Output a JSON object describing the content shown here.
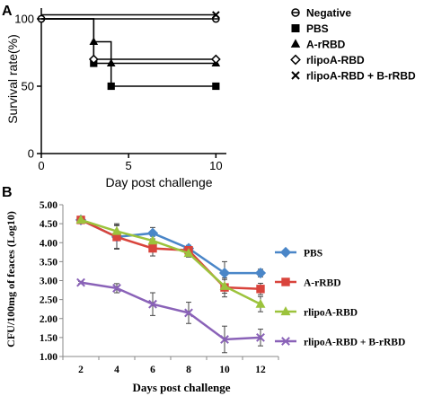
{
  "panels": {
    "a": {
      "label": "A"
    },
    "b": {
      "label": "B"
    }
  },
  "chart_data": [
    {
      "type": "line",
      "subtype": "step",
      "panel": "A",
      "title": "",
      "xlabel": "Day post challenge",
      "ylabel": "Survival rate(%)",
      "xlim": [
        0,
        10.6
      ],
      "ylim": [
        0,
        108
      ],
      "xticks": [
        0,
        5,
        10
      ],
      "yticks": [
        0,
        50,
        100
      ],
      "grid": false,
      "legend_position": "right",
      "series": [
        {
          "name": "Negative",
          "marker": "circle-line",
          "x": [
            0,
            10
          ],
          "y": [
            100,
            100
          ],
          "stroke": "#000000",
          "steps": [
            [
              0,
              100
            ],
            [
              10,
              100
            ]
          ]
        },
        {
          "name": "PBS",
          "marker": "square",
          "x": [
            3,
            4,
            10
          ],
          "y": [
            67,
            50,
            50
          ],
          "stroke": "#000000",
          "steps": [
            [
              0,
              100
            ],
            [
              3,
              100
            ],
            [
              3,
              67
            ],
            [
              4,
              67
            ],
            [
              4,
              50
            ],
            [
              10,
              50
            ]
          ]
        },
        {
          "name": "A-rRBD",
          "marker": "triangle",
          "x": [
            3,
            4,
            10
          ],
          "y": [
            83,
            67,
            67
          ],
          "stroke": "#000000",
          "steps": [
            [
              0,
              100
            ],
            [
              3,
              100
            ],
            [
              3,
              83
            ],
            [
              4,
              83
            ],
            [
              4,
              67
            ],
            [
              10,
              67
            ]
          ]
        },
        {
          "name": "rlipoA-RBD",
          "marker": "diamond",
          "x": [
            3,
            10
          ],
          "y": [
            70,
            70
          ],
          "stroke": "#000000",
          "steps": [
            [
              0,
              100
            ],
            [
              3,
              100
            ],
            [
              3,
              70
            ],
            [
              10,
              70
            ]
          ]
        },
        {
          "name": "rlipoA-RBD + B-rRBD",
          "marker": "x",
          "x": [
            0,
            10
          ],
          "y": [
            103,
            103
          ],
          "stroke": "#000000",
          "steps": [
            [
              0,
              103
            ],
            [
              10,
              103
            ]
          ]
        }
      ]
    },
    {
      "type": "line",
      "panel": "B",
      "title": "",
      "xlabel": "Days post challenge",
      "ylabel": "CFU/100mg of feaces (Log10)",
      "categories": [
        "2",
        "4",
        "6",
        "8",
        "10",
        "12"
      ],
      "ylim": [
        1.0,
        5.0
      ],
      "yticks": [
        "1.00",
        "1.50",
        "2.00",
        "2.50",
        "3.00",
        "3.50",
        "4.00",
        "4.50",
        "5.00"
      ],
      "grid": false,
      "legend_position": "right",
      "series": [
        {
          "name": "PBS",
          "color": "#4a86c8",
          "marker": "diamond",
          "values": [
            4.6,
            4.15,
            4.25,
            3.85,
            3.2,
            3.2
          ],
          "err": [
            0.05,
            0.3,
            0.15,
            0.08,
            0.3,
            0.1
          ]
        },
        {
          "name": "A-rRBD",
          "color": "#d9443c",
          "marker": "square",
          "values": [
            4.6,
            4.15,
            3.85,
            3.8,
            2.82,
            2.78
          ],
          "err": [
            0.05,
            0.32,
            0.2,
            0.1,
            0.25,
            0.15
          ]
        },
        {
          "name": "rlipoA-RBD",
          "color": "#9cc33c",
          "marker": "triangle",
          "values": [
            4.6,
            4.3,
            4.05,
            3.72,
            2.85,
            2.38
          ],
          "err": [
            0.05,
            0.2,
            0.12,
            0.1,
            0.18,
            0.2
          ]
        },
        {
          "name": "rlipoA-RBD + B-rRBD",
          "color": "#8a62b8",
          "marker": "x",
          "values": [
            2.95,
            2.8,
            2.38,
            2.15,
            1.45,
            1.5
          ],
          "err": [
            0.03,
            0.12,
            0.3,
            0.28,
            0.35,
            0.22
          ]
        }
      ]
    }
  ]
}
